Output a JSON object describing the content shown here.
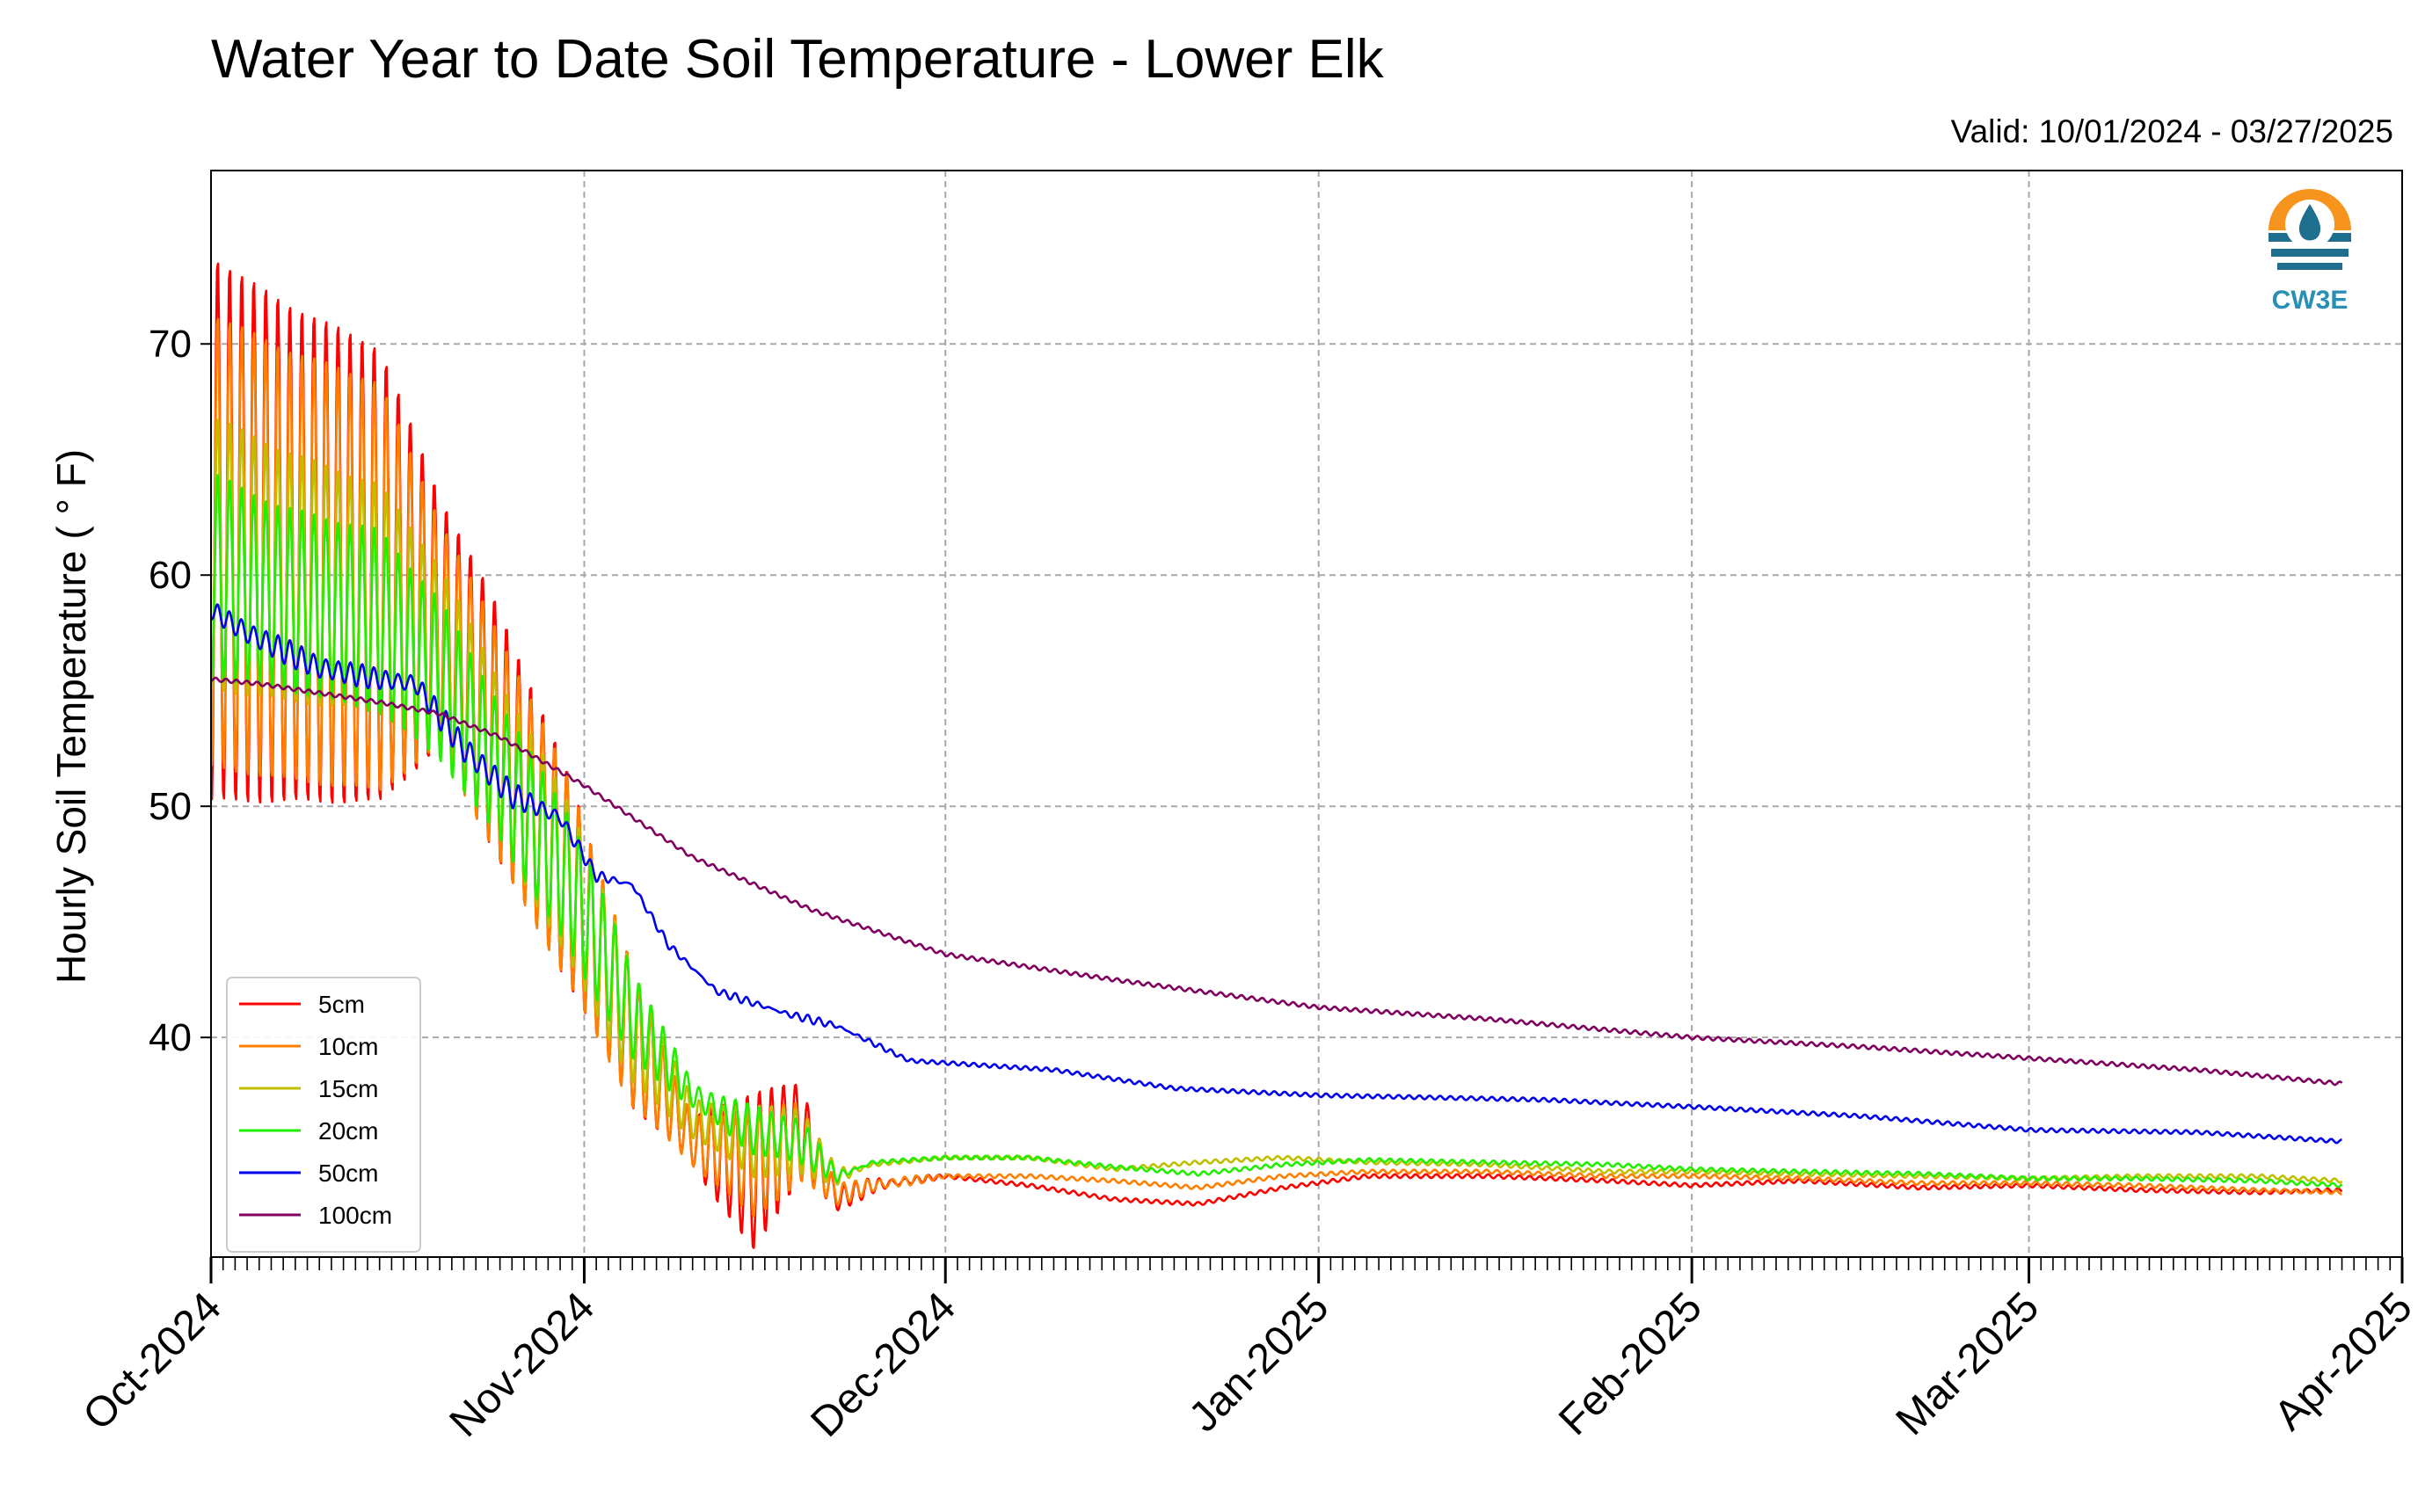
{
  "chart_data": {
    "type": "line",
    "title": "Water Year to Date Soil Temperature - Lower Elk",
    "valid_label": "Valid: 10/01/2024 - 03/27/2025",
    "ylabel": "Hourly Soil Temperature ( ° F)",
    "xlabel": "",
    "x_range": [
      "2024-10-01",
      "2025-04-01"
    ],
    "ylim": [
      30.5,
      77.5
    ],
    "yticks": [
      40,
      50,
      60,
      70
    ],
    "xticks": [
      {
        "date": "2024-10-01",
        "label": "Oct-2024"
      },
      {
        "date": "2024-11-01",
        "label": "Nov-2024"
      },
      {
        "date": "2024-12-01",
        "label": "Dec-2024"
      },
      {
        "date": "2025-01-01",
        "label": "Jan-2025"
      },
      {
        "date": "2025-02-01",
        "label": "Feb-2025"
      },
      {
        "date": "2025-03-01",
        "label": "Mar-2025"
      },
      {
        "date": "2025-04-01",
        "label": "Apr-2025"
      }
    ],
    "grid": true,
    "legend_position": "lower-left",
    "logo_text": "CW3E",
    "series": [
      {
        "name": "5cm",
        "color": "#ff0000",
        "x": [
          "2024-10-01",
          "2024-10-07",
          "2024-10-15",
          "2024-10-20",
          "2024-10-25",
          "2024-10-31",
          "2024-11-05",
          "2024-11-10",
          "2024-11-15",
          "2024-11-19",
          "2024-11-22",
          "2024-11-25",
          "2024-12-01",
          "2024-12-08",
          "2024-12-15",
          "2024-12-22",
          "2024-12-29",
          "2025-01-05",
          "2025-01-15",
          "2025-01-25",
          "2025-02-01",
          "2025-02-10",
          "2025-02-20",
          "2025-03-01",
          "2025-03-10",
          "2025-03-20",
          "2025-03-27"
        ],
        "mean": [
          62,
          61,
          60,
          58,
          53,
          46.5,
          40,
          35.5,
          34.2,
          36,
          33,
          33.6,
          34,
          33.6,
          33,
          32.8,
          33.5,
          34,
          34,
          33.8,
          33.6,
          33.8,
          33.5,
          33.6,
          33.4,
          33.3,
          33.4
        ],
        "amp": [
          12,
          11,
          10,
          5.5,
          5.5,
          4.5,
          3,
          1,
          3.5,
          2,
          0.5,
          0.3,
          0,
          0,
          0,
          0,
          0,
          0,
          0,
          0,
          0,
          0,
          0,
          0,
          0,
          0,
          0
        ]
      },
      {
        "name": "10cm",
        "color": "#ff8000",
        "x": [
          "2024-10-01",
          "2024-10-07",
          "2024-10-15",
          "2024-10-20",
          "2024-10-25",
          "2024-10-31",
          "2024-11-05",
          "2024-11-10",
          "2024-11-15",
          "2024-11-19",
          "2024-11-22",
          "2024-11-25",
          "2024-12-01",
          "2024-12-08",
          "2024-12-15",
          "2024-12-22",
          "2024-12-29",
          "2025-01-05",
          "2025-01-15",
          "2025-01-25",
          "2025-02-01",
          "2025-02-10",
          "2025-02-20",
          "2025-03-01",
          "2025-03-10",
          "2025-03-20",
          "2025-03-27"
        ],
        "mean": [
          61.5,
          60.5,
          59.5,
          57.5,
          52.5,
          46.5,
          40,
          35.5,
          34.5,
          35.5,
          33.2,
          33.6,
          34,
          34,
          33.8,
          33.5,
          34,
          34.2,
          34.2,
          34,
          34,
          33.9,
          33.7,
          33.7,
          33.6,
          33.4,
          33.3
        ],
        "amp": [
          10,
          9.5,
          9,
          5,
          5,
          4.5,
          3,
          1,
          2.3,
          1.8,
          0.4,
          0.3,
          0,
          0,
          0,
          0,
          0,
          0,
          0,
          0,
          0,
          0,
          0,
          0,
          0,
          0,
          0
        ]
      },
      {
        "name": "15cm",
        "color": "#bfbf00",
        "x": [
          "2024-10-01",
          "2024-10-07",
          "2024-10-15",
          "2024-10-20",
          "2024-10-25",
          "2024-10-31",
          "2024-11-05",
          "2024-11-10",
          "2024-11-15",
          "2024-11-19",
          "2024-11-22",
          "2024-11-25",
          "2024-12-01",
          "2024-12-08",
          "2024-12-15",
          "2024-12-22",
          "2024-12-29",
          "2025-01-05",
          "2025-01-15",
          "2025-01-25",
          "2025-02-01",
          "2025-02-10",
          "2025-02-20",
          "2025-03-01",
          "2025-03-10",
          "2025-03-20",
          "2025-03-27"
        ],
        "mean": [
          61,
          60,
          59,
          56.5,
          52,
          46.5,
          40.5,
          36.5,
          35.5,
          35.5,
          34,
          34.5,
          34.8,
          34.8,
          34.3,
          34.6,
          34.8,
          34.6,
          34.5,
          34.2,
          34.2,
          34.1,
          34,
          33.9,
          34,
          34,
          33.8
        ],
        "amp": [
          6,
          5.5,
          5,
          4,
          3.5,
          3.5,
          2.5,
          0.8,
          1.5,
          1.5,
          0.3,
          0,
          0,
          0,
          0,
          0,
          0,
          0,
          0,
          0,
          0,
          0,
          0,
          0,
          0,
          0,
          0
        ]
      },
      {
        "name": "20cm",
        "color": "#22ee00",
        "x": [
          "2024-10-01",
          "2024-10-07",
          "2024-10-15",
          "2024-10-20",
          "2024-10-25",
          "2024-10-31",
          "2024-11-05",
          "2024-11-10",
          "2024-11-15",
          "2024-11-19",
          "2024-11-22",
          "2024-11-25",
          "2024-12-01",
          "2024-12-08",
          "2024-12-15",
          "2024-12-22",
          "2024-12-29",
          "2025-01-05",
          "2025-01-15",
          "2025-01-25",
          "2025-02-01",
          "2025-02-10",
          "2025-02-20",
          "2025-03-01",
          "2025-03-10",
          "2025-03-20",
          "2025-03-27"
        ],
        "mean": [
          60,
          59,
          58,
          55.5,
          51.5,
          46.5,
          41,
          37.5,
          36,
          35.5,
          34,
          34.6,
          34.8,
          34.8,
          34.4,
          34.1,
          34.5,
          34.7,
          34.6,
          34.5,
          34.3,
          34.2,
          34.1,
          33.9,
          33.9,
          33.8,
          33.6
        ],
        "amp": [
          4.5,
          4,
          4,
          3.5,
          3,
          3,
          2,
          0.5,
          1,
          1,
          0.2,
          0,
          0,
          0,
          0,
          0,
          0,
          0,
          0,
          0,
          0,
          0,
          0,
          0,
          0,
          0,
          0
        ]
      },
      {
        "name": "50cm",
        "color": "#0000ee",
        "x": [
          "2024-10-01",
          "2024-10-04",
          "2024-10-10",
          "2024-10-15",
          "2024-10-18",
          "2024-10-22",
          "2024-10-26",
          "2024-10-30",
          "2024-11-02",
          "2024-11-05",
          "2024-11-08",
          "2024-11-12",
          "2024-11-18",
          "2024-11-22",
          "2024-11-28",
          "2024-12-10",
          "2024-12-20",
          "2025-01-01",
          "2025-01-20",
          "2025-02-01",
          "2025-02-15",
          "2025-03-01",
          "2025-03-15",
          "2025-03-27"
        ],
        "mean": [
          58.5,
          57.5,
          56,
          55.5,
          55.3,
          52.5,
          50.5,
          49.5,
          47,
          46.6,
          44,
          42,
          41,
          40.5,
          39,
          38.6,
          37.8,
          37.5,
          37.3,
          37,
          36.6,
          36,
          35.9,
          35.5
        ],
        "amp": [
          0.3,
          0.5,
          0.5,
          0.4,
          0.4,
          0.6,
          0.5,
          0.3,
          0.2,
          0.1,
          0.1,
          0.1,
          0.1,
          0.1,
          0,
          0,
          0,
          0,
          0,
          0,
          0,
          0,
          0,
          0
        ]
      },
      {
        "name": "100cm",
        "color": "#800060",
        "x": [
          "2024-10-01",
          "2024-10-05",
          "2024-10-15",
          "2024-10-20",
          "2024-10-25",
          "2024-11-01",
          "2024-11-10",
          "2024-11-20",
          "2024-12-01",
          "2024-12-15",
          "2025-01-01",
          "2025-01-15",
          "2025-02-01",
          "2025-02-15",
          "2025-03-01",
          "2025-03-15",
          "2025-03-27"
        ],
        "mean": [
          55.5,
          55.3,
          54.5,
          54,
          53,
          50.9,
          47.8,
          45.5,
          43.6,
          42.5,
          41.3,
          40.8,
          40,
          39.6,
          39.1,
          38.6,
          38
        ],
        "amp": [
          0,
          0,
          0,
          0,
          0,
          0,
          0,
          0,
          0,
          0,
          0,
          0,
          0,
          0,
          0,
          0,
          0
        ]
      }
    ]
  }
}
